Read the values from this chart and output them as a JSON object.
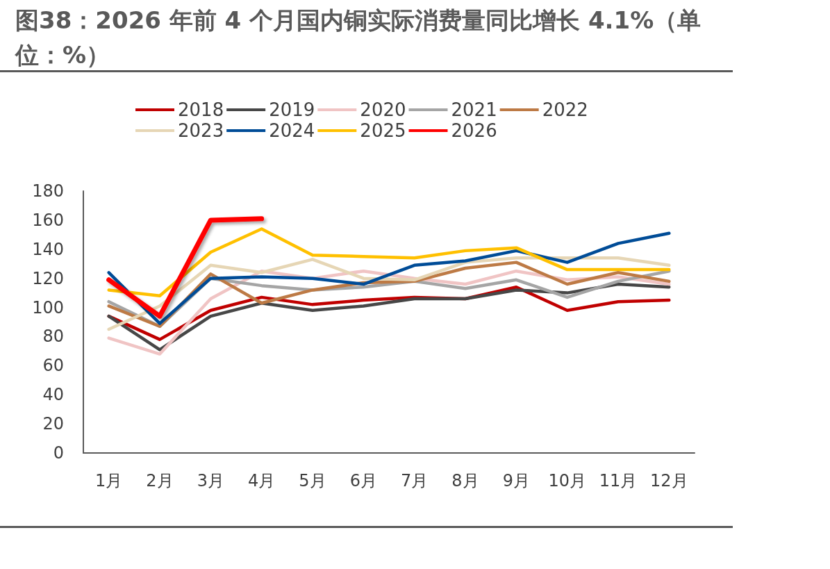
{
  "chart_data": {
    "type": "line",
    "title": "图38：2026 年前 4 个月国内铜实际消费量同比增长 4.1%（单位：%）",
    "categories": [
      "1月",
      "2月",
      "3月",
      "4月",
      "5月",
      "6月",
      "7月",
      "8月",
      "9月",
      "10月",
      "11月",
      "12月"
    ],
    "ylim": [
      0,
      180
    ],
    "yticks": [
      0,
      20,
      40,
      60,
      80,
      100,
      120,
      140,
      160,
      180
    ],
    "grid": false,
    "legend": "top",
    "marker": "none",
    "line_style": "solid",
    "series": [
      {
        "name": "2018",
        "color": "#c00000",
        "values": [
          94,
          78,
          98,
          107,
          102,
          105,
          107,
          106,
          114,
          98,
          104,
          105
        ]
      },
      {
        "name": "2019",
        "color": "#474747",
        "values": [
          94,
          71,
          94,
          103,
          98,
          101,
          106,
          106,
          112,
          110,
          116,
          114
        ]
      },
      {
        "name": "2020",
        "color": "#f0c4c4",
        "values": [
          79,
          68,
          106,
          125,
          120,
          125,
          120,
          116,
          125,
          119,
          121,
          116
        ]
      },
      {
        "name": "2021",
        "color": "#a5a5a5",
        "values": [
          104,
          87,
          120,
          115,
          112,
          114,
          118,
          113,
          119,
          107,
          118,
          125
        ]
      },
      {
        "name": "2022",
        "color": "#bd7a45",
        "values": [
          101,
          87,
          123,
          103,
          112,
          117,
          118,
          127,
          131,
          116,
          124,
          118
        ]
      },
      {
        "name": "2023",
        "color": "#e6d6b5",
        "values": [
          85,
          101,
          129,
          124,
          133,
          120,
          119,
          131,
          134,
          134,
          134,
          129
        ]
      },
      {
        "name": "2024",
        "color": "#004c97",
        "values": [
          124,
          89,
          120,
          121,
          120,
          116,
          129,
          132,
          139,
          131,
          144,
          151
        ]
      },
      {
        "name": "2025",
        "color": "#ffc000",
        "values": [
          112,
          108,
          138,
          154,
          136,
          135,
          134,
          139,
          141,
          126,
          126,
          126
        ]
      },
      {
        "name": "2026",
        "color": "#ff0000",
        "values": [
          119,
          94,
          160,
          161,
          null,
          null,
          null,
          null,
          null,
          null,
          null,
          null
        ]
      }
    ]
  }
}
